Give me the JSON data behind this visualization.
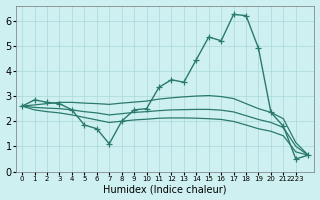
{
  "x": [
    0,
    1,
    2,
    3,
    4,
    5,
    6,
    7,
    8,
    9,
    10,
    11,
    12,
    13,
    14,
    15,
    16,
    17,
    18,
    19,
    20,
    21,
    22,
    23
  ],
  "curve_main": [
    2.6,
    2.85,
    2.75,
    2.7,
    2.45,
    1.85,
    1.7,
    1.1,
    2.0,
    2.45,
    2.5,
    3.35,
    3.65,
    3.55,
    4.45,
    5.35,
    5.2,
    6.25,
    6.2,
    4.9,
    2.35,
    1.8,
    0.5,
    0.65
  ],
  "curve_upper": [
    2.6,
    2.65,
    2.7,
    2.75,
    2.75,
    2.72,
    2.7,
    2.67,
    2.72,
    2.76,
    2.8,
    2.88,
    2.93,
    2.97,
    3.0,
    3.02,
    2.98,
    2.9,
    2.7,
    2.5,
    2.35,
    2.1,
    1.15,
    0.65
  ],
  "curve_mid": [
    2.6,
    2.55,
    2.52,
    2.5,
    2.45,
    2.38,
    2.33,
    2.25,
    2.3,
    2.35,
    2.38,
    2.42,
    2.45,
    2.46,
    2.47,
    2.47,
    2.44,
    2.37,
    2.22,
    2.07,
    1.95,
    1.75,
    1.0,
    0.65
  ],
  "curve_lower": [
    2.6,
    2.45,
    2.38,
    2.33,
    2.25,
    2.15,
    2.05,
    1.95,
    2.0,
    2.05,
    2.08,
    2.12,
    2.13,
    2.13,
    2.12,
    2.1,
    2.07,
    1.99,
    1.85,
    1.7,
    1.6,
    1.42,
    0.78,
    0.65
  ],
  "line_color": "#2a7a6a",
  "bg_color": "#cff0f0",
  "grid_color": "#aad8d8",
  "xlim": [
    -0.5,
    23.5
  ],
  "ylim": [
    0,
    6.6
  ],
  "xlabel": "Humidex (Indice chaleur)",
  "yticks": [
    0,
    1,
    2,
    3,
    4,
    5,
    6
  ],
  "xtick_positions": [
    0,
    1,
    2,
    3,
    4,
    5,
    6,
    7,
    8,
    9,
    10,
    11,
    12,
    13,
    14,
    15,
    16,
    17,
    18,
    19,
    20,
    21,
    22
  ],
  "xtick_labels": [
    "0",
    "1",
    "2",
    "3",
    "4",
    "5",
    "6",
    "7",
    "8",
    "9",
    "10",
    "11",
    "12",
    "13",
    "14",
    "15",
    "16",
    "17",
    "18",
    "19",
    "20",
    "21",
    "2223"
  ]
}
